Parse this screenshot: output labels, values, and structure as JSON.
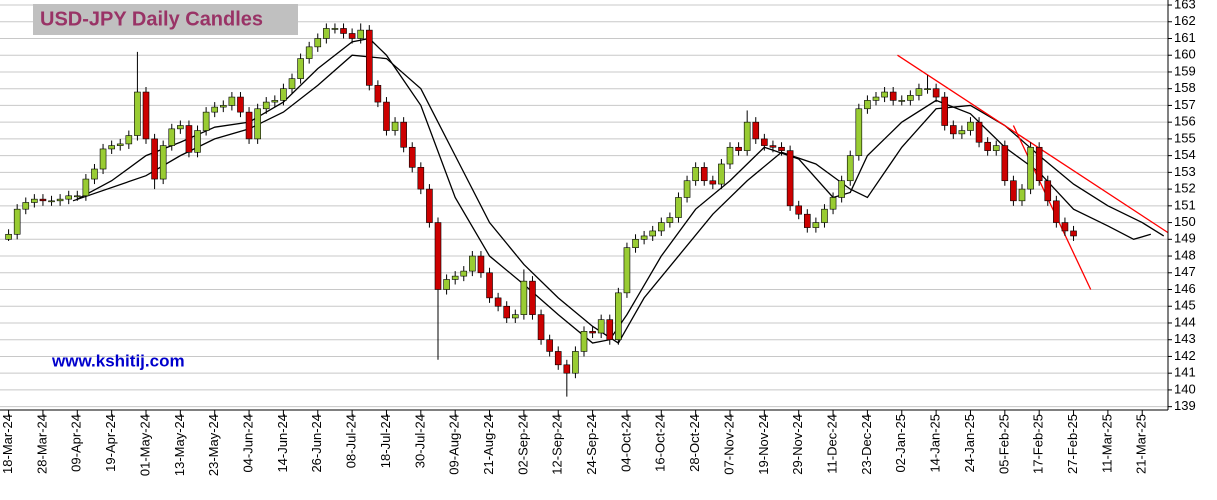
{
  "chart_data": {
    "type": "candlestick",
    "title": "USD-JPY Daily Candles",
    "annotations": [
      {
        "text": "www.kshitij.com",
        "color": "#0000cc"
      }
    ],
    "up_color": "#99cc33",
    "down_color": "#cc0000",
    "grid": true,
    "xlim": [
      -2,
      270
    ],
    "ylim": [
      138.8,
      163.3
    ],
    "yticks": [
      139,
      140,
      141,
      142,
      143,
      144,
      145,
      146,
      147,
      148,
      149,
      150,
      151,
      152,
      153,
      154,
      155,
      156,
      157,
      158,
      159,
      160,
      161,
      162,
      163
    ],
    "xticks": [
      {
        "value": 0,
        "label": "18-Mar-24"
      },
      {
        "value": 8,
        "label": "28-Mar-24"
      },
      {
        "value": 16,
        "label": "09-Apr-24"
      },
      {
        "value": 24,
        "label": "19-Apr-24"
      },
      {
        "value": 32,
        "label": "01-May-24"
      },
      {
        "value": 40,
        "label": "13-May-24"
      },
      {
        "value": 48,
        "label": "23-May-24"
      },
      {
        "value": 56,
        "label": "04-Jun-24"
      },
      {
        "value": 64,
        "label": "14-Jun-24"
      },
      {
        "value": 72,
        "label": "26-Jun-24"
      },
      {
        "value": 80,
        "label": "08-Jul-24"
      },
      {
        "value": 88,
        "label": "18-Jul-24"
      },
      {
        "value": 96,
        "label": "30-Jul-24"
      },
      {
        "value": 104,
        "label": "09-Aug-24"
      },
      {
        "value": 112,
        "label": "21-Aug-24"
      },
      {
        "value": 120,
        "label": "02-Sep-24"
      },
      {
        "value": 128,
        "label": "12-Sep-24"
      },
      {
        "value": 136,
        "label": "24-Sep-24"
      },
      {
        "value": 144,
        "label": "04-Oct-24"
      },
      {
        "value": 152,
        "label": "16-Oct-24"
      },
      {
        "value": 160,
        "label": "28-Oct-24"
      },
      {
        "value": 168,
        "label": "07-Nov-24"
      },
      {
        "value": 176,
        "label": "19-Nov-24"
      },
      {
        "value": 184,
        "label": "29-Nov-24"
      },
      {
        "value": 192,
        "label": "11-Dec-24"
      },
      {
        "value": 200,
        "label": "23-Dec-24"
      },
      {
        "value": 208,
        "label": "02-Jan-25"
      },
      {
        "value": 216,
        "label": "14-Jan-25"
      },
      {
        "value": 224,
        "label": "24-Jan-25"
      },
      {
        "value": 232,
        "label": "05-Feb-25"
      },
      {
        "value": 240,
        "label": "17-Feb-25"
      },
      {
        "value": 248,
        "label": "27-Feb-25"
      },
      {
        "value": 256,
        "label": "11-Mar-25"
      },
      {
        "value": 264,
        "label": "21-Mar-25"
      }
    ],
    "x": [
      0,
      2,
      4,
      6,
      8,
      10,
      12,
      14,
      16,
      18,
      20,
      22,
      24,
      26,
      28,
      30,
      32,
      34,
      36,
      38,
      40,
      42,
      44,
      46,
      48,
      50,
      52,
      54,
      56,
      58,
      60,
      62,
      64,
      66,
      68,
      70,
      72,
      74,
      76,
      78,
      80,
      82,
      84,
      86,
      88,
      90,
      92,
      94,
      96,
      98,
      100,
      102,
      104,
      106,
      108,
      110,
      112,
      114,
      116,
      118,
      120,
      122,
      124,
      126,
      128,
      130,
      132,
      134,
      136,
      138,
      140,
      142,
      144,
      146,
      148,
      150,
      152,
      154,
      156,
      158,
      160,
      162,
      164,
      166,
      168,
      170,
      172,
      174,
      176,
      178,
      180,
      182,
      184,
      186,
      188,
      190,
      192,
      194,
      196,
      198,
      200,
      202,
      204,
      206,
      208,
      210,
      212,
      214,
      216,
      218,
      220,
      222,
      224,
      226,
      228,
      230,
      232,
      234,
      236,
      238,
      240,
      242,
      244,
      246,
      248
    ],
    "open": [
      149.0,
      149.3,
      150.8,
      151.2,
      151.4,
      151.3,
      151.3,
      151.4,
      151.6,
      151.6,
      152.6,
      153.2,
      154.4,
      154.6,
      154.7,
      155.2,
      157.8,
      155.0,
      152.6,
      154.6,
      155.6,
      155.8,
      154.2,
      155.5,
      156.6,
      156.9,
      157.0,
      157.5,
      156.6,
      155.0,
      156.8,
      157.2,
      157.3,
      158.0,
      158.6,
      159.8,
      160.5,
      161.0,
      161.6,
      161.6,
      161.3,
      161.0,
      161.5,
      158.2,
      157.2,
      155.5,
      156.0,
      154.5,
      153.3,
      152.0,
      150.0,
      146.0,
      146.6,
      146.8,
      147.1,
      148.0,
      147.0,
      145.5,
      145.0,
      144.3,
      144.5,
      146.5,
      144.5,
      143.0,
      142.3,
      141.5,
      141.0,
      142.3,
      143.5,
      143.4,
      144.2,
      143.0,
      145.8,
      148.5,
      149.0,
      149.2,
      149.5,
      150.0,
      150.3,
      151.5,
      152.5,
      153.3,
      152.5,
      152.3,
      153.5,
      154.5,
      154.3,
      156.0,
      155.0,
      154.6,
      154.5,
      154.3,
      151.0,
      150.5,
      149.7,
      150.0,
      150.8,
      151.5,
      152.5,
      154.0,
      156.8,
      157.3,
      157.5,
      157.8,
      157.3,
      157.3,
      157.6,
      158.0,
      158.0,
      157.5,
      155.8,
      155.3,
      155.5,
      156.0,
      154.8,
      154.3,
      154.6,
      152.5,
      151.3,
      152.0,
      154.5,
      152.5,
      151.3,
      150.0,
      149.5
    ],
    "high": [
      149.6,
      151.1,
      151.5,
      151.7,
      151.7,
      151.6,
      151.7,
      151.9,
      151.9,
      152.9,
      153.5,
      154.7,
      154.9,
      155.0,
      155.5,
      160.2,
      158.1,
      155.3,
      154.9,
      155.9,
      156.1,
      156.1,
      155.8,
      156.9,
      157.2,
      157.3,
      157.8,
      157.8,
      156.9,
      157.1,
      157.5,
      157.6,
      158.3,
      158.9,
      160.1,
      160.8,
      161.3,
      161.9,
      161.9,
      161.9,
      161.6,
      161.9,
      161.8,
      158.5,
      157.5,
      156.3,
      156.3,
      154.8,
      153.6,
      152.3,
      150.3,
      146.9,
      147.1,
      147.4,
      148.3,
      148.3,
      147.3,
      145.8,
      145.3,
      144.8,
      147.2,
      146.8,
      144.8,
      143.3,
      142.6,
      141.8,
      142.6,
      143.8,
      143.8,
      144.5,
      144.5,
      146.1,
      148.8,
      149.3,
      149.5,
      149.8,
      150.3,
      150.6,
      151.8,
      152.8,
      153.6,
      153.6,
      152.8,
      153.8,
      154.8,
      154.8,
      156.7,
      156.3,
      155.3,
      154.9,
      154.8,
      154.6,
      151.3,
      150.8,
      150.3,
      151.1,
      151.8,
      152.8,
      154.3,
      157.1,
      157.6,
      157.8,
      158.1,
      158.1,
      157.6,
      157.9,
      158.3,
      158.8,
      158.3,
      157.8,
      156.1,
      155.8,
      156.3,
      156.3,
      155.1,
      154.9,
      154.9,
      152.8,
      152.3,
      154.8,
      154.8,
      152.8,
      151.6,
      150.3,
      149.8
    ],
    "low": [
      148.9,
      149.0,
      150.5,
      150.9,
      151.0,
      151.0,
      151.0,
      151.1,
      151.3,
      151.3,
      152.3,
      152.9,
      154.1,
      154.3,
      154.4,
      154.9,
      154.7,
      152.0,
      152.3,
      154.3,
      155.3,
      153.9,
      153.9,
      155.2,
      156.3,
      156.6,
      156.7,
      156.3,
      154.7,
      154.7,
      156.5,
      156.9,
      157.0,
      157.7,
      158.3,
      159.5,
      160.2,
      160.7,
      161.3,
      161.0,
      160.7,
      160.7,
      157.9,
      156.9,
      155.2,
      155.2,
      154.2,
      153.0,
      151.7,
      149.7,
      141.8,
      145.7,
      146.3,
      146.5,
      146.8,
      146.7,
      145.2,
      144.7,
      144.0,
      144.0,
      144.2,
      144.2,
      142.7,
      142.0,
      141.2,
      139.6,
      140.7,
      142.0,
      143.1,
      143.1,
      142.7,
      142.7,
      145.5,
      148.2,
      148.7,
      148.9,
      149.2,
      149.7,
      150.0,
      151.2,
      152.2,
      152.2,
      152.0,
      152.0,
      153.2,
      154.0,
      154.0,
      154.7,
      154.3,
      154.2,
      154.0,
      150.7,
      150.2,
      149.4,
      149.4,
      149.7,
      150.5,
      151.2,
      152.2,
      153.7,
      156.5,
      157.0,
      157.2,
      157.0,
      157.0,
      157.0,
      157.3,
      157.7,
      157.2,
      155.5,
      155.0,
      155.0,
      155.2,
      154.5,
      154.0,
      154.0,
      152.2,
      151.0,
      151.0,
      151.7,
      152.2,
      151.0,
      149.7,
      149.2,
      148.9
    ],
    "close": [
      149.3,
      150.8,
      151.2,
      151.4,
      151.3,
      151.3,
      151.4,
      151.6,
      151.6,
      152.6,
      153.2,
      154.4,
      154.6,
      154.7,
      155.2,
      157.8,
      155.0,
      152.6,
      154.6,
      155.6,
      155.8,
      154.2,
      155.5,
      156.6,
      156.9,
      157.0,
      157.5,
      156.6,
      155.0,
      156.8,
      157.2,
      157.3,
      158.0,
      158.6,
      159.8,
      160.5,
      161.0,
      161.6,
      161.6,
      161.3,
      161.0,
      161.5,
      158.2,
      157.2,
      155.5,
      156.0,
      154.5,
      153.3,
      152.0,
      150.0,
      146.0,
      146.6,
      146.8,
      147.1,
      148.0,
      147.0,
      145.5,
      145.0,
      144.3,
      144.5,
      146.5,
      144.5,
      143.0,
      142.3,
      141.5,
      141.0,
      142.3,
      143.5,
      143.4,
      144.2,
      143.0,
      145.8,
      148.5,
      149.0,
      149.2,
      149.5,
      150.0,
      150.3,
      151.5,
      152.5,
      153.3,
      152.5,
      152.3,
      153.5,
      154.5,
      154.3,
      156.0,
      155.0,
      154.6,
      154.5,
      154.3,
      151.0,
      150.5,
      149.7,
      150.0,
      150.8,
      151.5,
      152.5,
      154.0,
      156.8,
      157.3,
      157.5,
      157.8,
      157.3,
      157.3,
      157.6,
      158.0,
      158.0,
      157.5,
      155.8,
      155.3,
      155.5,
      156.0,
      154.8,
      154.3,
      154.6,
      152.5,
      151.3,
      152.0,
      154.5,
      152.5,
      151.3,
      150.0,
      149.5,
      149.2
    ],
    "lines": [
      {
        "color": "#000000",
        "x": [
          16,
          24,
          32,
          40,
          48,
          56,
          64,
          72,
          80,
          84,
          88,
          96,
          104,
          112,
          120,
          128,
          136,
          140,
          144,
          152,
          160,
          168,
          176,
          184,
          192,
          196,
          200,
          208,
          216,
          224,
          232,
          240,
          248,
          256,
          262,
          266
        ],
        "values": [
          151.4,
          152.5,
          154.0,
          154.8,
          155.7,
          156.0,
          157.2,
          159.2,
          160.8,
          161.0,
          160.0,
          157.0,
          151.5,
          148.0,
          146.3,
          144.5,
          142.8,
          143.0,
          144.5,
          148.0,
          150.8,
          152.5,
          154.5,
          153.8,
          151.5,
          151.8,
          154.0,
          156.0,
          157.3,
          156.5,
          154.5,
          153.0,
          150.8,
          149.8,
          149.0,
          149.3
        ]
      },
      {
        "color": "#000000",
        "x": [
          15,
          32,
          40,
          48,
          56,
          64,
          72,
          80,
          88,
          96,
          104,
          112,
          120,
          128,
          136,
          142,
          148,
          156,
          164,
          172,
          180,
          188,
          196,
          200,
          208,
          216,
          224,
          232,
          240,
          248,
          256,
          264,
          269
        ],
        "values": [
          151.3,
          152.8,
          154.0,
          155.0,
          155.6,
          156.6,
          158.2,
          160.0,
          159.8,
          158.0,
          154.0,
          150.0,
          147.5,
          145.5,
          143.8,
          142.8,
          145.5,
          148.0,
          150.5,
          152.5,
          154.2,
          153.5,
          152.0,
          151.5,
          154.5,
          156.8,
          157.0,
          155.8,
          154.0,
          152.3,
          151.0,
          150.0,
          149.2
        ]
      },
      {
        "color": "#ff0000",
        "x": [
          207,
          270
        ],
        "values": [
          160.0,
          149.4
        ]
      },
      {
        "color": "#ff0000",
        "x": [
          234,
          252
        ],
        "values": [
          155.8,
          146.0
        ]
      }
    ]
  }
}
